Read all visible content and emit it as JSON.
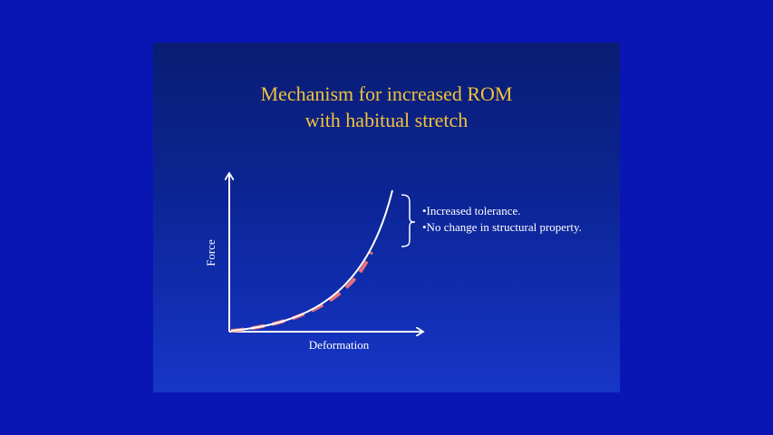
{
  "slide": {
    "title_lines": [
      "Mechanism for increased ROM",
      "with habitual stretch"
    ],
    "bullets": [
      "•Increased tolerance.",
      "•No change in structural property."
    ]
  },
  "diagram": {
    "x_axis_label": "Deformation",
    "y_axis_label": "Force",
    "curve_color": "#ffffff",
    "dashed_overlay_color": "#e8707a",
    "axis_color": "#ffffff"
  },
  "colors": {
    "background": "#0a16b4",
    "slide_top": "#0a1d72",
    "slide_bottom": "#1636c8",
    "title": "#f2c23a",
    "text": "#ffffff"
  }
}
